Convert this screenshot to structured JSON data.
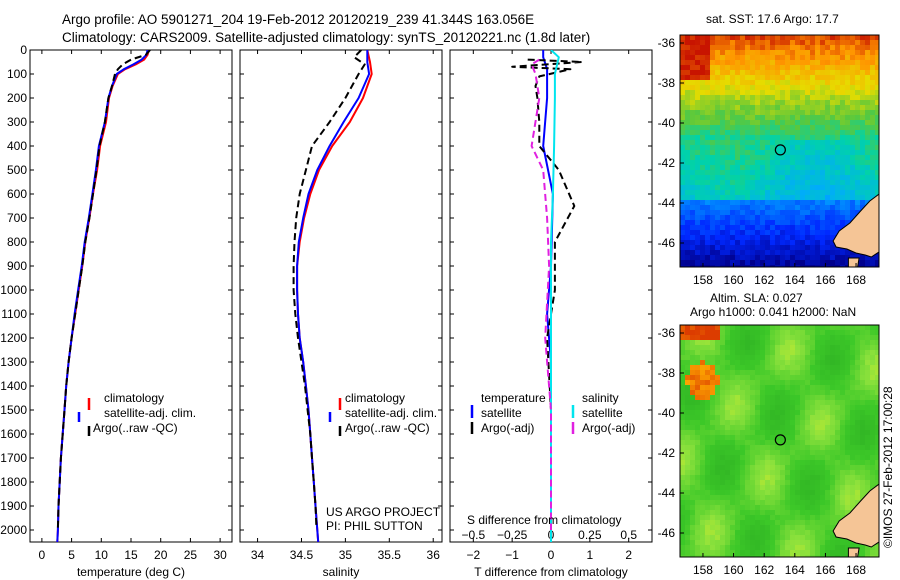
{
  "figure": {
    "title_line1": "Argo profile: AO 5901271_204 19-Feb-2012 20120219_239 41.344S 163.056E",
    "title_line2": "Climatology: CARS2009. Satellite-adjusted climatology: synTS_20120221.nc (1.8d later)",
    "side_stamp": "©IMOS 27-Feb-2012 17:00:28",
    "project_line1": "US ARGO PROJECT",
    "project_line2": "PI: PHIL SUTTON",
    "colors": {
      "climatology": "#ff0000",
      "satellite": "#0000ff",
      "argo": "#000000",
      "salinity_satellite": "#00e5ee",
      "salinity_argo": "#e020e0"
    }
  },
  "legend": {
    "climatology": "climatology",
    "satellite_clim": "satellite-adj. clim.",
    "argo_raw": "Argo(..raw -QC)",
    "temperature_header": "temperature",
    "salinity_header": "salinity",
    "satellite": "satellite",
    "argo_adj": "Argo(-adj)"
  },
  "chart_data": [
    {
      "type": "line",
      "name": "temperature_profile",
      "xlabel": "temperature (deg C)",
      "ylabel": "",
      "xlim": [
        -2,
        32
      ],
      "ylim": [
        2050,
        0
      ],
      "x_ticks": [
        0,
        5,
        10,
        15,
        20,
        25,
        30
      ],
      "y_ticks": [
        0,
        100,
        200,
        300,
        400,
        500,
        600,
        700,
        800,
        900,
        1000,
        1100,
        1200,
        1300,
        1400,
        1500,
        1600,
        1700,
        1800,
        1900,
        2000
      ],
      "series": [
        {
          "name": "climatology",
          "style": "solid",
          "color": "#ff0000",
          "points": [
            [
              18.0,
              0
            ],
            [
              17.8,
              20
            ],
            [
              17.2,
              40
            ],
            [
              15.8,
              60
            ],
            [
              14.0,
              80
            ],
            [
              12.8,
              100
            ],
            [
              11.9,
              150
            ],
            [
              11.3,
              200
            ],
            [
              10.8,
              300
            ],
            [
              9.8,
              400
            ],
            [
              9.3,
              500
            ],
            [
              8.6,
              600
            ],
            [
              8.0,
              700
            ],
            [
              7.3,
              800
            ],
            [
              6.8,
              900
            ],
            [
              6.2,
              1000
            ],
            [
              5.6,
              1100
            ],
            [
              5.0,
              1200
            ],
            [
              4.5,
              1300
            ],
            [
              4.1,
              1400
            ],
            [
              3.8,
              1500
            ],
            [
              3.5,
              1600
            ],
            [
              3.2,
              1700
            ],
            [
              3.0,
              1800
            ],
            [
              2.8,
              1900
            ],
            [
              2.7,
              2000
            ],
            [
              2.6,
              2050
            ]
          ]
        },
        {
          "name": "satellite-adj. clim.",
          "style": "solid",
          "color": "#0000ff",
          "points": [
            [
              17.8,
              0
            ],
            [
              17.6,
              20
            ],
            [
              16.8,
              40
            ],
            [
              15.4,
              60
            ],
            [
              13.8,
              80
            ],
            [
              12.6,
              100
            ],
            [
              11.8,
              150
            ],
            [
              11.2,
              200
            ],
            [
              10.6,
              300
            ],
            [
              9.6,
              400
            ],
            [
              9.1,
              500
            ],
            [
              8.5,
              600
            ],
            [
              7.9,
              700
            ],
            [
              7.2,
              800
            ],
            [
              6.7,
              900
            ],
            [
              6.1,
              1000
            ],
            [
              5.5,
              1100
            ],
            [
              5.0,
              1200
            ],
            [
              4.5,
              1300
            ],
            [
              4.1,
              1400
            ],
            [
              3.8,
              1500
            ],
            [
              3.5,
              1600
            ],
            [
              3.2,
              1700
            ],
            [
              3.0,
              1800
            ],
            [
              2.8,
              1900
            ],
            [
              2.7,
              2000
            ],
            [
              2.6,
              2050
            ]
          ]
        },
        {
          "name": "Argo(..raw -QC)",
          "style": "dashed",
          "color": "#000000",
          "points": [
            [
              18.2,
              0
            ],
            [
              17.5,
              20
            ],
            [
              15.0,
              40
            ],
            [
              13.6,
              60
            ],
            [
              12.8,
              80
            ],
            [
              12.3,
              100
            ],
            [
              11.8,
              150
            ],
            [
              11.2,
              200
            ],
            [
              10.6,
              300
            ],
            [
              9.7,
              400
            ],
            [
              9.2,
              500
            ],
            [
              8.6,
              600
            ],
            [
              8.0,
              700
            ],
            [
              7.3,
              800
            ],
            [
              6.8,
              900
            ],
            [
              6.2,
              1000
            ],
            [
              5.6,
              1100
            ],
            [
              5.0,
              1200
            ],
            [
              4.5,
              1300
            ],
            [
              4.1,
              1400
            ],
            [
              3.8,
              1500
            ],
            [
              3.5,
              1600
            ],
            [
              3.2,
              1700
            ],
            [
              3.0,
              1800
            ],
            [
              2.8,
              1900
            ],
            [
              2.7,
              1990
            ]
          ]
        }
      ]
    },
    {
      "type": "line",
      "name": "salinity_profile",
      "xlabel": "salinity",
      "ylabel": "",
      "xlim": [
        33.8,
        36.1
      ],
      "ylim": [
        2050,
        0
      ],
      "x_ticks": [
        34,
        34.5,
        35,
        35.5,
        36
      ],
      "x_tick_labels": [
        "34",
        "34.5",
        "35",
        "35.5",
        "36"
      ],
      "series": [
        {
          "name": "climatology",
          "style": "solid",
          "color": "#ff0000",
          "points": [
            [
              35.25,
              0
            ],
            [
              35.28,
              50
            ],
            [
              35.3,
              100
            ],
            [
              35.2,
              200
            ],
            [
              35.05,
              300
            ],
            [
              34.85,
              400
            ],
            [
              34.7,
              500
            ],
            [
              34.6,
              600
            ],
            [
              34.53,
              700
            ],
            [
              34.48,
              800
            ],
            [
              34.45,
              900
            ],
            [
              34.45,
              1000
            ],
            [
              34.46,
              1100
            ],
            [
              34.48,
              1200
            ],
            [
              34.52,
              1300
            ],
            [
              34.55,
              1400
            ],
            [
              34.58,
              1500
            ],
            [
              34.6,
              1600
            ],
            [
              34.62,
              1700
            ],
            [
              34.64,
              1800
            ],
            [
              34.66,
              1900
            ],
            [
              34.68,
              2000
            ],
            [
              34.69,
              2050
            ]
          ]
        },
        {
          "name": "satellite-adj. clim.",
          "style": "solid",
          "color": "#0000ff",
          "points": [
            [
              35.25,
              0
            ],
            [
              35.25,
              50
            ],
            [
              35.27,
              100
            ],
            [
              35.15,
              200
            ],
            [
              34.98,
              300
            ],
            [
              34.82,
              400
            ],
            [
              34.68,
              500
            ],
            [
              34.58,
              600
            ],
            [
              34.52,
              700
            ],
            [
              34.47,
              800
            ],
            [
              34.45,
              900
            ],
            [
              34.45,
              1000
            ],
            [
              34.46,
              1100
            ],
            [
              34.48,
              1200
            ],
            [
              34.52,
              1300
            ],
            [
              34.55,
              1400
            ],
            [
              34.58,
              1500
            ],
            [
              34.6,
              1600
            ],
            [
              34.62,
              1700
            ],
            [
              34.64,
              1800
            ],
            [
              34.66,
              1900
            ],
            [
              34.68,
              2000
            ],
            [
              34.69,
              2050
            ]
          ]
        },
        {
          "name": "Argo(..raw -QC)",
          "style": "dashed",
          "color": "#000000",
          "points": [
            [
              35.18,
              0
            ],
            [
              35.1,
              30
            ],
            [
              35.22,
              60
            ],
            [
              35.15,
              100
            ],
            [
              35.0,
              200
            ],
            [
              34.82,
              300
            ],
            [
              34.62,
              400
            ],
            [
              34.55,
              500
            ],
            [
              34.48,
              600
            ],
            [
              34.44,
              700
            ],
            [
              34.42,
              800
            ],
            [
              34.41,
              900
            ],
            [
              34.41,
              1000
            ],
            [
              34.43,
              1100
            ],
            [
              34.46,
              1200
            ],
            [
              34.5,
              1300
            ],
            [
              34.54,
              1400
            ],
            [
              34.57,
              1500
            ],
            [
              34.6,
              1600
            ],
            [
              34.62,
              1700
            ],
            [
              34.64,
              1800
            ],
            [
              34.66,
              1900
            ],
            [
              34.67,
              1990
            ]
          ]
        }
      ]
    },
    {
      "type": "line",
      "name": "difference_profile",
      "xlabel": "T difference from climatology",
      "xlabel_top": "S difference from climatology",
      "ylabel": "",
      "xlim": [
        -2.6,
        2.6
      ],
      "ylim": [
        2050,
        0
      ],
      "x_ticks": [
        -2,
        -1,
        0,
        1,
        2
      ],
      "x_tick_labels": [
        "−2",
        "−1",
        "0",
        "1",
        "2"
      ],
      "x2_ticks": [
        -0.5,
        -0.25,
        0,
        0.25,
        0.5
      ],
      "x2_tick_labels": [
        "−0.5",
        "−0.25",
        "0",
        "0.25",
        "0.5"
      ],
      "x2_scale": 4,
      "series": [
        {
          "name": "temperature satellite",
          "style": "solid",
          "color": "#0000ff",
          "points": [
            [
              -0.2,
              0
            ],
            [
              -0.2,
              30
            ],
            [
              -0.1,
              80
            ],
            [
              -0.1,
              200
            ],
            [
              -0.2,
              400
            ],
            [
              0.05,
              600
            ],
            [
              0.0,
              900
            ],
            [
              -0.1,
              1100
            ],
            [
              0.0,
              1300
            ],
            [
              0.0,
              2050
            ]
          ]
        },
        {
          "name": "temperature Argo(-adj)",
          "style": "dashed",
          "color": "#000000",
          "points": [
            [
              -0.6,
              40
            ],
            [
              0.8,
              50
            ],
            [
              -1.0,
              70
            ],
            [
              0.5,
              80
            ],
            [
              -0.3,
              110
            ],
            [
              -0.4,
              150
            ],
            [
              -0.35,
              200
            ],
            [
              -0.3,
              300
            ],
            [
              -0.3,
              400
            ],
            [
              0.2,
              500
            ],
            [
              0.6,
              650
            ],
            [
              0.1,
              800
            ],
            [
              0.1,
              1000
            ],
            [
              -0.1,
              1200
            ],
            [
              0.0,
              1500
            ],
            [
              0.0,
              2000
            ]
          ]
        },
        {
          "name": "salinity satellite",
          "style": "solid",
          "color": "#00e5ee",
          "points": [
            [
              0.0,
              0
            ],
            [
              0.2,
              30
            ],
            [
              0.1,
              100
            ],
            [
              0.1,
              200
            ],
            [
              0.08,
              400
            ],
            [
              0.05,
              600
            ],
            [
              0.0,
              800
            ],
            [
              0.0,
              2050
            ]
          ]
        },
        {
          "name": "salinity Argo(-adj)",
          "style": "dashed",
          "color": "#e020e0",
          "points": [
            [
              -0.3,
              40
            ],
            [
              -0.5,
              60
            ],
            [
              -0.4,
              100
            ],
            [
              -0.3,
              200
            ],
            [
              -0.5,
              400
            ],
            [
              -0.2,
              500
            ],
            [
              -0.1,
              700
            ],
            [
              -0.05,
              900
            ],
            [
              -0.15,
              1200
            ],
            [
              0.0,
              1500
            ],
            [
              0.0,
              2000
            ]
          ]
        }
      ]
    },
    {
      "type": "heatmap",
      "name": "sst_map",
      "title": "sat. SST: 17.6  Argo: 17.7",
      "xlim": [
        156.5,
        169.5
      ],
      "ylim": [
        -47.2,
        -35.6
      ],
      "x_ticks": [
        158,
        160,
        162,
        164,
        166,
        168
      ],
      "y_ticks": [
        -36,
        -38,
        -40,
        -42,
        -44,
        -46
      ],
      "marker": {
        "lon": 163.056,
        "lat": -41.344
      }
    },
    {
      "type": "heatmap",
      "name": "sla_map",
      "title_line1": "Altim. SLA: 0.027",
      "title_line2": "Argo h1000: 0.041 h2000: NaN",
      "xlim": [
        156.5,
        169.5
      ],
      "ylim": [
        -47.2,
        -35.6
      ],
      "x_ticks": [
        158,
        160,
        162,
        164,
        166,
        168
      ],
      "y_ticks": [
        -36,
        -38,
        -40,
        -42,
        -44,
        -46
      ],
      "marker": {
        "lon": 163.056,
        "lat": -41.344
      }
    }
  ]
}
